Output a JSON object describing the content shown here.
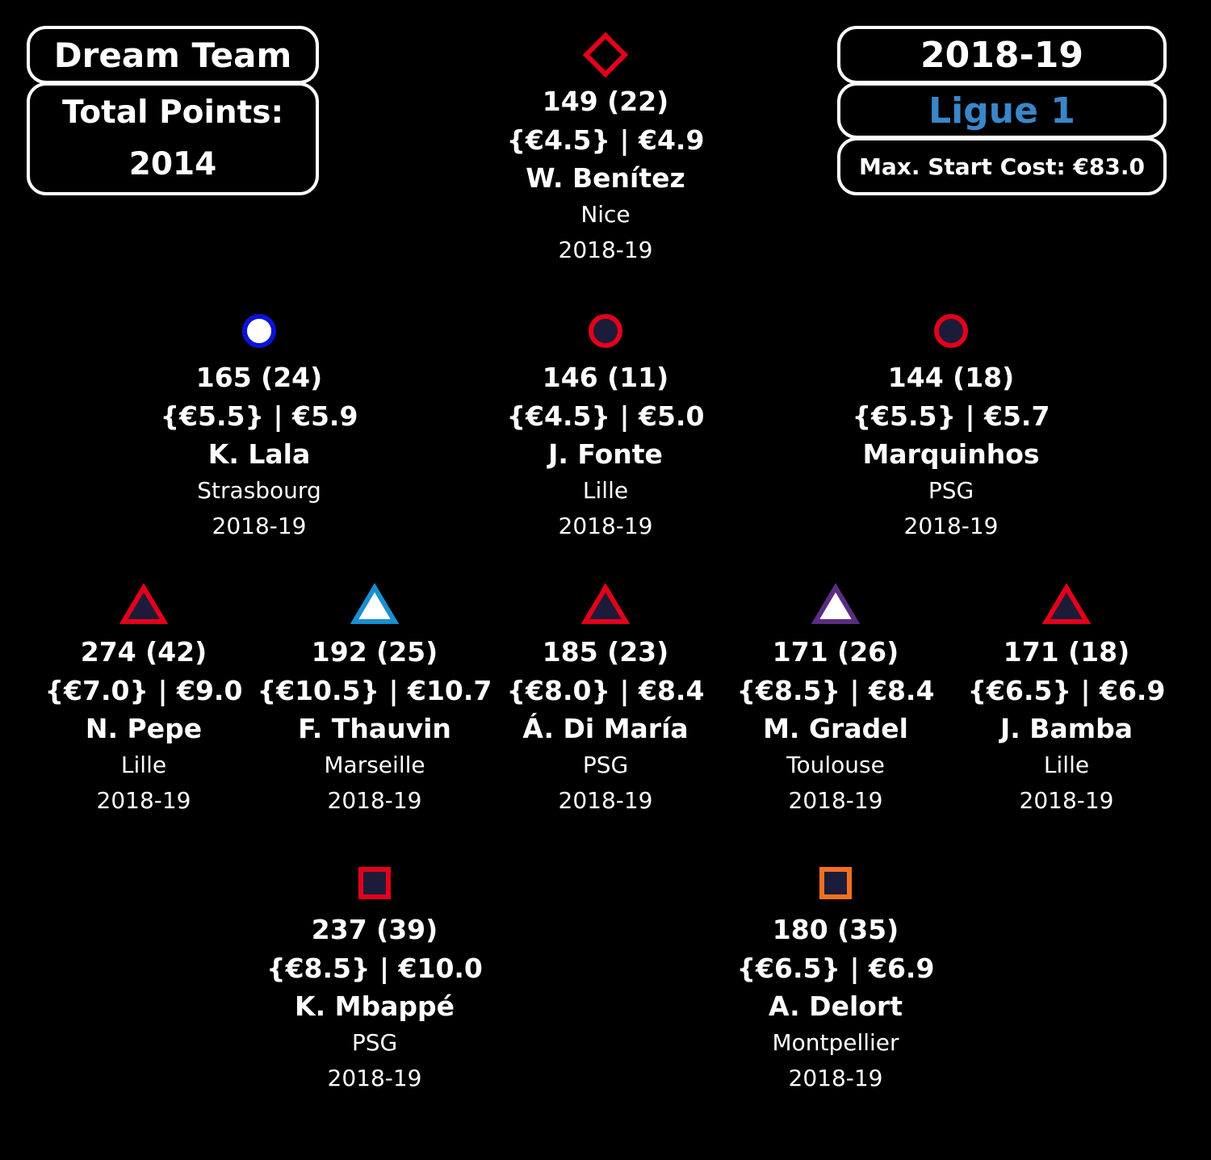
{
  "header": {
    "title": "Dream Team",
    "total_points_label": "Total Points:",
    "total_points_value": "2014",
    "season": "2018-19",
    "league": "Ligue 1",
    "max_start_cost": "Max. Start Cost: €83.0"
  },
  "colors": {
    "background": "#000000",
    "text": "#ffffff",
    "league": "#3a86c8"
  },
  "players": [
    {
      "id": "gk",
      "shape": "diamond",
      "fill": "#000000",
      "stroke": "#e3001b",
      "points": "149 (22)",
      "price": "{€4.5} | €4.9",
      "name": "W. Benítez",
      "team": "Nice",
      "season": "2018-19"
    },
    {
      "id": "def1",
      "shape": "circle",
      "fill": "#ffffff",
      "stroke": "#0a14d8",
      "points": "165 (24)",
      "price": "{€5.5} | €5.9",
      "name": "K. Lala",
      "team": "Strasbourg",
      "season": "2018-19"
    },
    {
      "id": "def2",
      "shape": "circle",
      "fill": "#1c1c3a",
      "stroke": "#e3001b",
      "points": "146 (11)",
      "price": "{€4.5} | €5.0",
      "name": "J. Fonte",
      "team": "Lille",
      "season": "2018-19"
    },
    {
      "id": "def3",
      "shape": "circle",
      "fill": "#1c1c3a",
      "stroke": "#e3001b",
      "points": "144 (18)",
      "price": "{€5.5} | €5.7",
      "name": "Marquinhos",
      "team": "PSG",
      "season": "2018-19"
    },
    {
      "id": "mid1",
      "shape": "triangle",
      "fill": "#1c1c3a",
      "stroke": "#e3001b",
      "points": "274 (42)",
      "price": "{€7.0} | €9.0",
      "name": "N. Pepe",
      "team": "Lille",
      "season": "2018-19"
    },
    {
      "id": "mid2",
      "shape": "triangle",
      "fill": "#ffffff",
      "stroke": "#1b8fd0",
      "points": "192 (25)",
      "price": "{€10.5} | €10.7",
      "name": "F. Thauvin",
      "team": "Marseille",
      "season": "2018-19"
    },
    {
      "id": "mid3",
      "shape": "triangle",
      "fill": "#1c1c3a",
      "stroke": "#e3001b",
      "points": "185 (23)",
      "price": "{€8.0} | €8.4",
      "name": "Á. Di María",
      "team": "PSG",
      "season": "2018-19"
    },
    {
      "id": "mid4",
      "shape": "triangle",
      "fill": "#ffffff",
      "stroke": "#5a2d82",
      "points": "171 (26)",
      "price": "{€8.5} | €8.4",
      "name": "M. Gradel",
      "team": "Toulouse",
      "season": "2018-19"
    },
    {
      "id": "mid5",
      "shape": "triangle",
      "fill": "#1c1c3a",
      "stroke": "#e3001b",
      "points": "171 (18)",
      "price": "{€6.5} | €6.9",
      "name": "J. Bamba",
      "team": "Lille",
      "season": "2018-19"
    },
    {
      "id": "fwd1",
      "shape": "square",
      "fill": "#1c1c3a",
      "stroke": "#e3001b",
      "points": "237 (39)",
      "price": "{€8.5} | €10.0",
      "name": "K. Mbappé",
      "team": "PSG",
      "season": "2018-19"
    },
    {
      "id": "fwd2",
      "shape": "square",
      "fill": "#1c1c3a",
      "stroke": "#f37021",
      "points": "180 (35)",
      "price": "{€6.5} | €6.9",
      "name": "A. Delort",
      "team": "Montpellier",
      "season": "2018-19"
    }
  ]
}
